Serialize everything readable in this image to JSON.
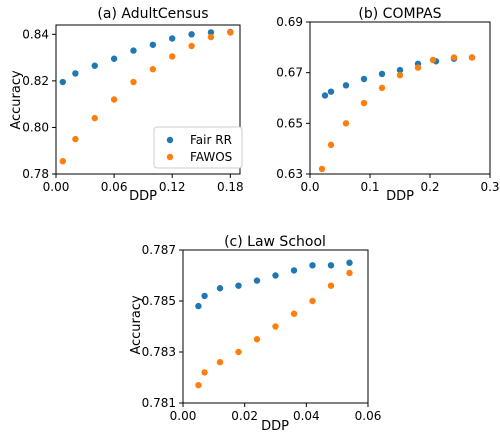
{
  "colors": {
    "fair_rr": "#1f77b4",
    "fawos": "#ff7f0e"
  },
  "legend": {
    "fair_rr": "Fair RR",
    "fawos": "FAWOS",
    "placement": "lower right (AdultCensus panel)"
  },
  "chart_data": [
    {
      "id": "adult",
      "type": "scatter",
      "title": "(a) AdultCensus",
      "xlabel": "DDP",
      "ylabel": "Accuracy",
      "xlim": [
        0,
        0.19
      ],
      "ylim": [
        0.78,
        0.844
      ],
      "xticks": [
        "0.00",
        "0.06",
        "0.12",
        "0.18"
      ],
      "xtick_values": [
        0.0,
        0.06,
        0.12,
        0.18
      ],
      "yticks": [
        "0.78",
        "0.80",
        "0.82",
        "0.84"
      ],
      "ytick_values": [
        0.78,
        0.8,
        0.82,
        0.84
      ],
      "series": [
        {
          "name": "Fair RR",
          "color": "#1f77b4",
          "x": [
            0.007,
            0.02,
            0.04,
            0.06,
            0.08,
            0.1,
            0.12,
            0.14,
            0.16,
            0.18
          ],
          "y": [
            0.8195,
            0.8232,
            0.8265,
            0.8295,
            0.833,
            0.8355,
            0.8382,
            0.84,
            0.8408,
            0.841
          ]
        },
        {
          "name": "FAWOS",
          "color": "#ff7f0e",
          "x": [
            0.007,
            0.02,
            0.04,
            0.06,
            0.08,
            0.1,
            0.12,
            0.14,
            0.16,
            0.18
          ],
          "y": [
            0.7855,
            0.795,
            0.804,
            0.812,
            0.8195,
            0.825,
            0.8305,
            0.835,
            0.8388,
            0.8408
          ]
        }
      ]
    },
    {
      "id": "compas",
      "type": "scatter",
      "title": "(b) COMPAS",
      "xlabel": "DDP",
      "ylabel": "",
      "xlim": [
        0,
        0.3
      ],
      "ylim": [
        0.63,
        0.69
      ],
      "xticks": [
        "0.0",
        "0.1",
        "0.2",
        "0.3"
      ],
      "xtick_values": [
        0.0,
        0.1,
        0.2,
        0.3
      ],
      "yticks": [
        "0.63",
        "0.65",
        "0.67",
        "0.69"
      ],
      "ytick_values": [
        0.63,
        0.65,
        0.67,
        0.69
      ],
      "series": [
        {
          "name": "Fair RR",
          "color": "#1f77b4",
          "x": [
            0.025,
            0.035,
            0.06,
            0.09,
            0.12,
            0.15,
            0.18,
            0.21,
            0.24,
            0.27
          ],
          "y": [
            0.661,
            0.6625,
            0.665,
            0.6675,
            0.6695,
            0.671,
            0.6735,
            0.6745,
            0.6755,
            0.676
          ]
        },
        {
          "name": "FAWOS",
          "color": "#ff7f0e",
          "x": [
            0.02,
            0.035,
            0.06,
            0.09,
            0.12,
            0.15,
            0.18,
            0.205,
            0.24,
            0.27
          ],
          "y": [
            0.632,
            0.6415,
            0.65,
            0.658,
            0.664,
            0.669,
            0.672,
            0.675,
            0.676,
            0.676
          ]
        }
      ]
    },
    {
      "id": "law",
      "type": "scatter",
      "title": "(c) Law School",
      "xlabel": "DDP",
      "ylabel": "Accuracy",
      "xlim": [
        0,
        0.06
      ],
      "ylim": [
        0.781,
        0.787
      ],
      "xticks": [
        "0.00",
        "0.02",
        "0.04",
        "0.06"
      ],
      "xtick_values": [
        0.0,
        0.02,
        0.04,
        0.06
      ],
      "yticks": [
        "0.781",
        "0.783",
        "0.785",
        "0.787"
      ],
      "ytick_values": [
        0.781,
        0.783,
        0.785,
        0.787
      ],
      "series": [
        {
          "name": "Fair RR",
          "color": "#1f77b4",
          "x": [
            0.005,
            0.007,
            0.012,
            0.018,
            0.024,
            0.03,
            0.036,
            0.042,
            0.048,
            0.054
          ],
          "y": [
            0.7848,
            0.7852,
            0.7855,
            0.7856,
            0.7858,
            0.786,
            0.7862,
            0.7864,
            0.7864,
            0.7865
          ]
        },
        {
          "name": "FAWOS",
          "color": "#ff7f0e",
          "x": [
            0.005,
            0.007,
            0.012,
            0.018,
            0.024,
            0.03,
            0.036,
            0.042,
            0.048,
            0.054
          ],
          "y": [
            0.7817,
            0.7822,
            0.7826,
            0.783,
            0.7835,
            0.784,
            0.7845,
            0.785,
            0.7856,
            0.7861
          ]
        }
      ]
    }
  ]
}
